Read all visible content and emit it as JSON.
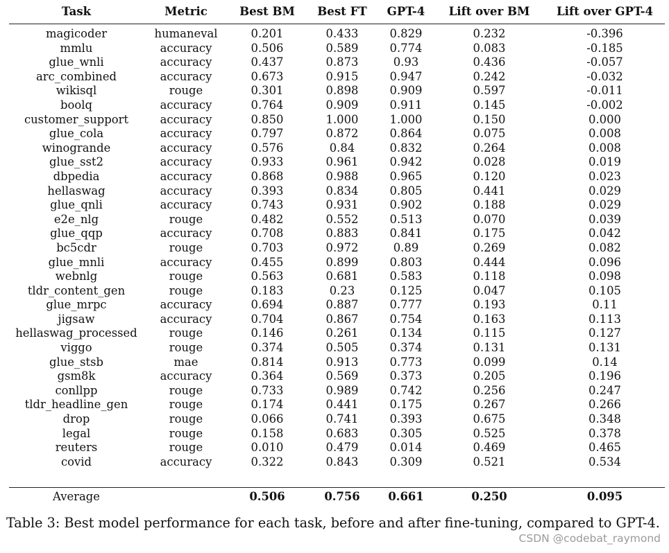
{
  "columns": [
    "Task",
    "Metric",
    "Best BM",
    "Best FT",
    "GPT-4",
    "Lift over BM",
    "Lift over GPT-4"
  ],
  "rows": [
    [
      "magicoder",
      "humaneval",
      "0.201",
      "0.433",
      "0.829",
      "0.232",
      "-0.396"
    ],
    [
      "mmlu",
      "accuracy",
      "0.506",
      "0.589",
      "0.774",
      "0.083",
      "-0.185"
    ],
    [
      "glue_wnli",
      "accuracy",
      "0.437",
      "0.873",
      "0.93",
      "0.436",
      "-0.057"
    ],
    [
      "arc_combined",
      "accuracy",
      "0.673",
      "0.915",
      "0.947",
      "0.242",
      "-0.032"
    ],
    [
      "wikisql",
      "rouge",
      "0.301",
      "0.898",
      "0.909",
      "0.597",
      "-0.011"
    ],
    [
      "boolq",
      "accuracy",
      "0.764",
      "0.909",
      "0.911",
      "0.145",
      "-0.002"
    ],
    [
      "customer_support",
      "accuracy",
      "0.850",
      "1.000",
      "1.000",
      "0.150",
      "0.000"
    ],
    [
      "glue_cola",
      "accuracy",
      "0.797",
      "0.872",
      "0.864",
      "0.075",
      "0.008"
    ],
    [
      "winogrande",
      "accuracy",
      "0.576",
      "0.84",
      "0.832",
      "0.264",
      "0.008"
    ],
    [
      "glue_sst2",
      "accuracy",
      "0.933",
      "0.961",
      "0.942",
      "0.028",
      "0.019"
    ],
    [
      "dbpedia",
      "accuracy",
      "0.868",
      "0.988",
      "0.965",
      "0.120",
      "0.023"
    ],
    [
      "hellaswag",
      "accuracy",
      "0.393",
      "0.834",
      "0.805",
      "0.441",
      "0.029"
    ],
    [
      "glue_qnli",
      "accuracy",
      "0.743",
      "0.931",
      "0.902",
      "0.188",
      "0.029"
    ],
    [
      "e2e_nlg",
      "rouge",
      "0.482",
      "0.552",
      "0.513",
      "0.070",
      "0.039"
    ],
    [
      "glue_qqp",
      "accuracy",
      "0.708",
      "0.883",
      "0.841",
      "0.175",
      "0.042"
    ],
    [
      "bc5cdr",
      "rouge",
      "0.703",
      "0.972",
      "0.89",
      "0.269",
      "0.082"
    ],
    [
      "glue_mnli",
      "accuracy",
      "0.455",
      "0.899",
      "0.803",
      "0.444",
      "0.096"
    ],
    [
      "webnlg",
      "rouge",
      "0.563",
      "0.681",
      "0.583",
      "0.118",
      "0.098"
    ],
    [
      "tldr_content_gen",
      "rouge",
      "0.183",
      "0.23",
      "0.125",
      "0.047",
      "0.105"
    ],
    [
      "glue_mrpc",
      "accuracy",
      "0.694",
      "0.887",
      "0.777",
      "0.193",
      "0.11"
    ],
    [
      "jigsaw",
      "accuracy",
      "0.704",
      "0.867",
      "0.754",
      "0.163",
      "0.113"
    ],
    [
      "hellaswag_processed",
      "rouge",
      "0.146",
      "0.261",
      "0.134",
      "0.115",
      "0.127"
    ],
    [
      "viggo",
      "rouge",
      "0.374",
      "0.505",
      "0.374",
      "0.131",
      "0.131"
    ],
    [
      "glue_stsb",
      "mae",
      "0.814",
      "0.913",
      "0.773",
      "0.099",
      "0.14"
    ],
    [
      "gsm8k",
      "accuracy",
      "0.364",
      "0.569",
      "0.373",
      "0.205",
      "0.196"
    ],
    [
      "conllpp",
      "rouge",
      "0.733",
      "0.989",
      "0.742",
      "0.256",
      "0.247"
    ],
    [
      "tldr_headline_gen",
      "rouge",
      "0.174",
      "0.441",
      "0.175",
      "0.267",
      "0.266"
    ],
    [
      "drop",
      "rouge",
      "0.066",
      "0.741",
      "0.393",
      "0.675",
      "0.348"
    ],
    [
      "legal",
      "rouge",
      "0.158",
      "0.683",
      "0.305",
      "0.525",
      "0.378"
    ],
    [
      "reuters",
      "rouge",
      "0.010",
      "0.479",
      "0.014",
      "0.469",
      "0.465"
    ],
    [
      "covid",
      "accuracy",
      "0.322",
      "0.843",
      "0.309",
      "0.521",
      "0.534"
    ]
  ],
  "average": {
    "label": "Average",
    "metric": "",
    "values": [
      "0.506",
      "0.756",
      "0.661",
      "0.250",
      "0.095"
    ]
  },
  "caption": "Table 3: Best model performance for each task, before and after fine-tuning, compared to GPT-4.",
  "watermark": "CSDN @codebat_raymond"
}
